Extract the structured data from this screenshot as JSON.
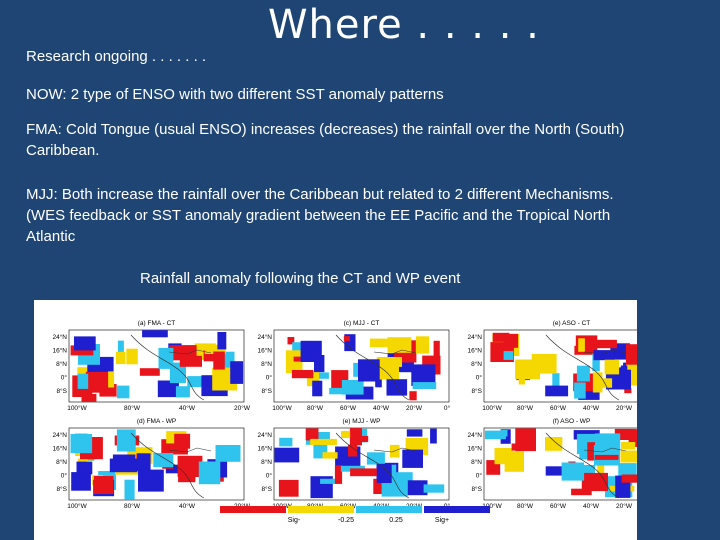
{
  "slide": {
    "title": "Where . . . . .",
    "subtitle": "Research ongoing . . . . . . .",
    "paragraphs": [
      "NOW: 2 type of ENSO with two different SST anomaly patterns",
      "FMA: Cold Tongue (usual ENSO) increases (decreases) the rainfall over the North (South) Caribbean.",
      "MJJ: Both increase the rainfall over the Caribbean but related to 2 different Mechanisms. (WES feedback or SST anomaly gradient between the EE Pacific and the Tropical North Atlantic"
    ],
    "figure_caption": "Rainfall anomaly following the CT and WP event"
  },
  "figure": {
    "panel_titles": [
      "(a) FMA - CT",
      "(c) MJJ - CT",
      "(e) ASO - CT",
      "(d) FMA - WP",
      "(e) MJJ - WP",
      "(f) ASO - WP"
    ],
    "lat_labels": [
      "24°N",
      "16°N",
      "8°N",
      "0°",
      "8°S"
    ],
    "lon_labels_left": [
      "100°W",
      "80°W",
      "40°W",
      "20°W"
    ],
    "lon_labels_other": [
      "100°W",
      "80°W",
      "60°W",
      "40°W",
      "20°W",
      "0°"
    ],
    "colorbar_labels": [
      "Sig-",
      "-0.25",
      "0.25",
      "Sig+"
    ],
    "colors": {
      "sig_neg": "#e8141c",
      "neg": "#f5d800",
      "pos": "#2fc4ee",
      "sig_pos": "#1f1fd0",
      "background": "#1f4574"
    }
  }
}
